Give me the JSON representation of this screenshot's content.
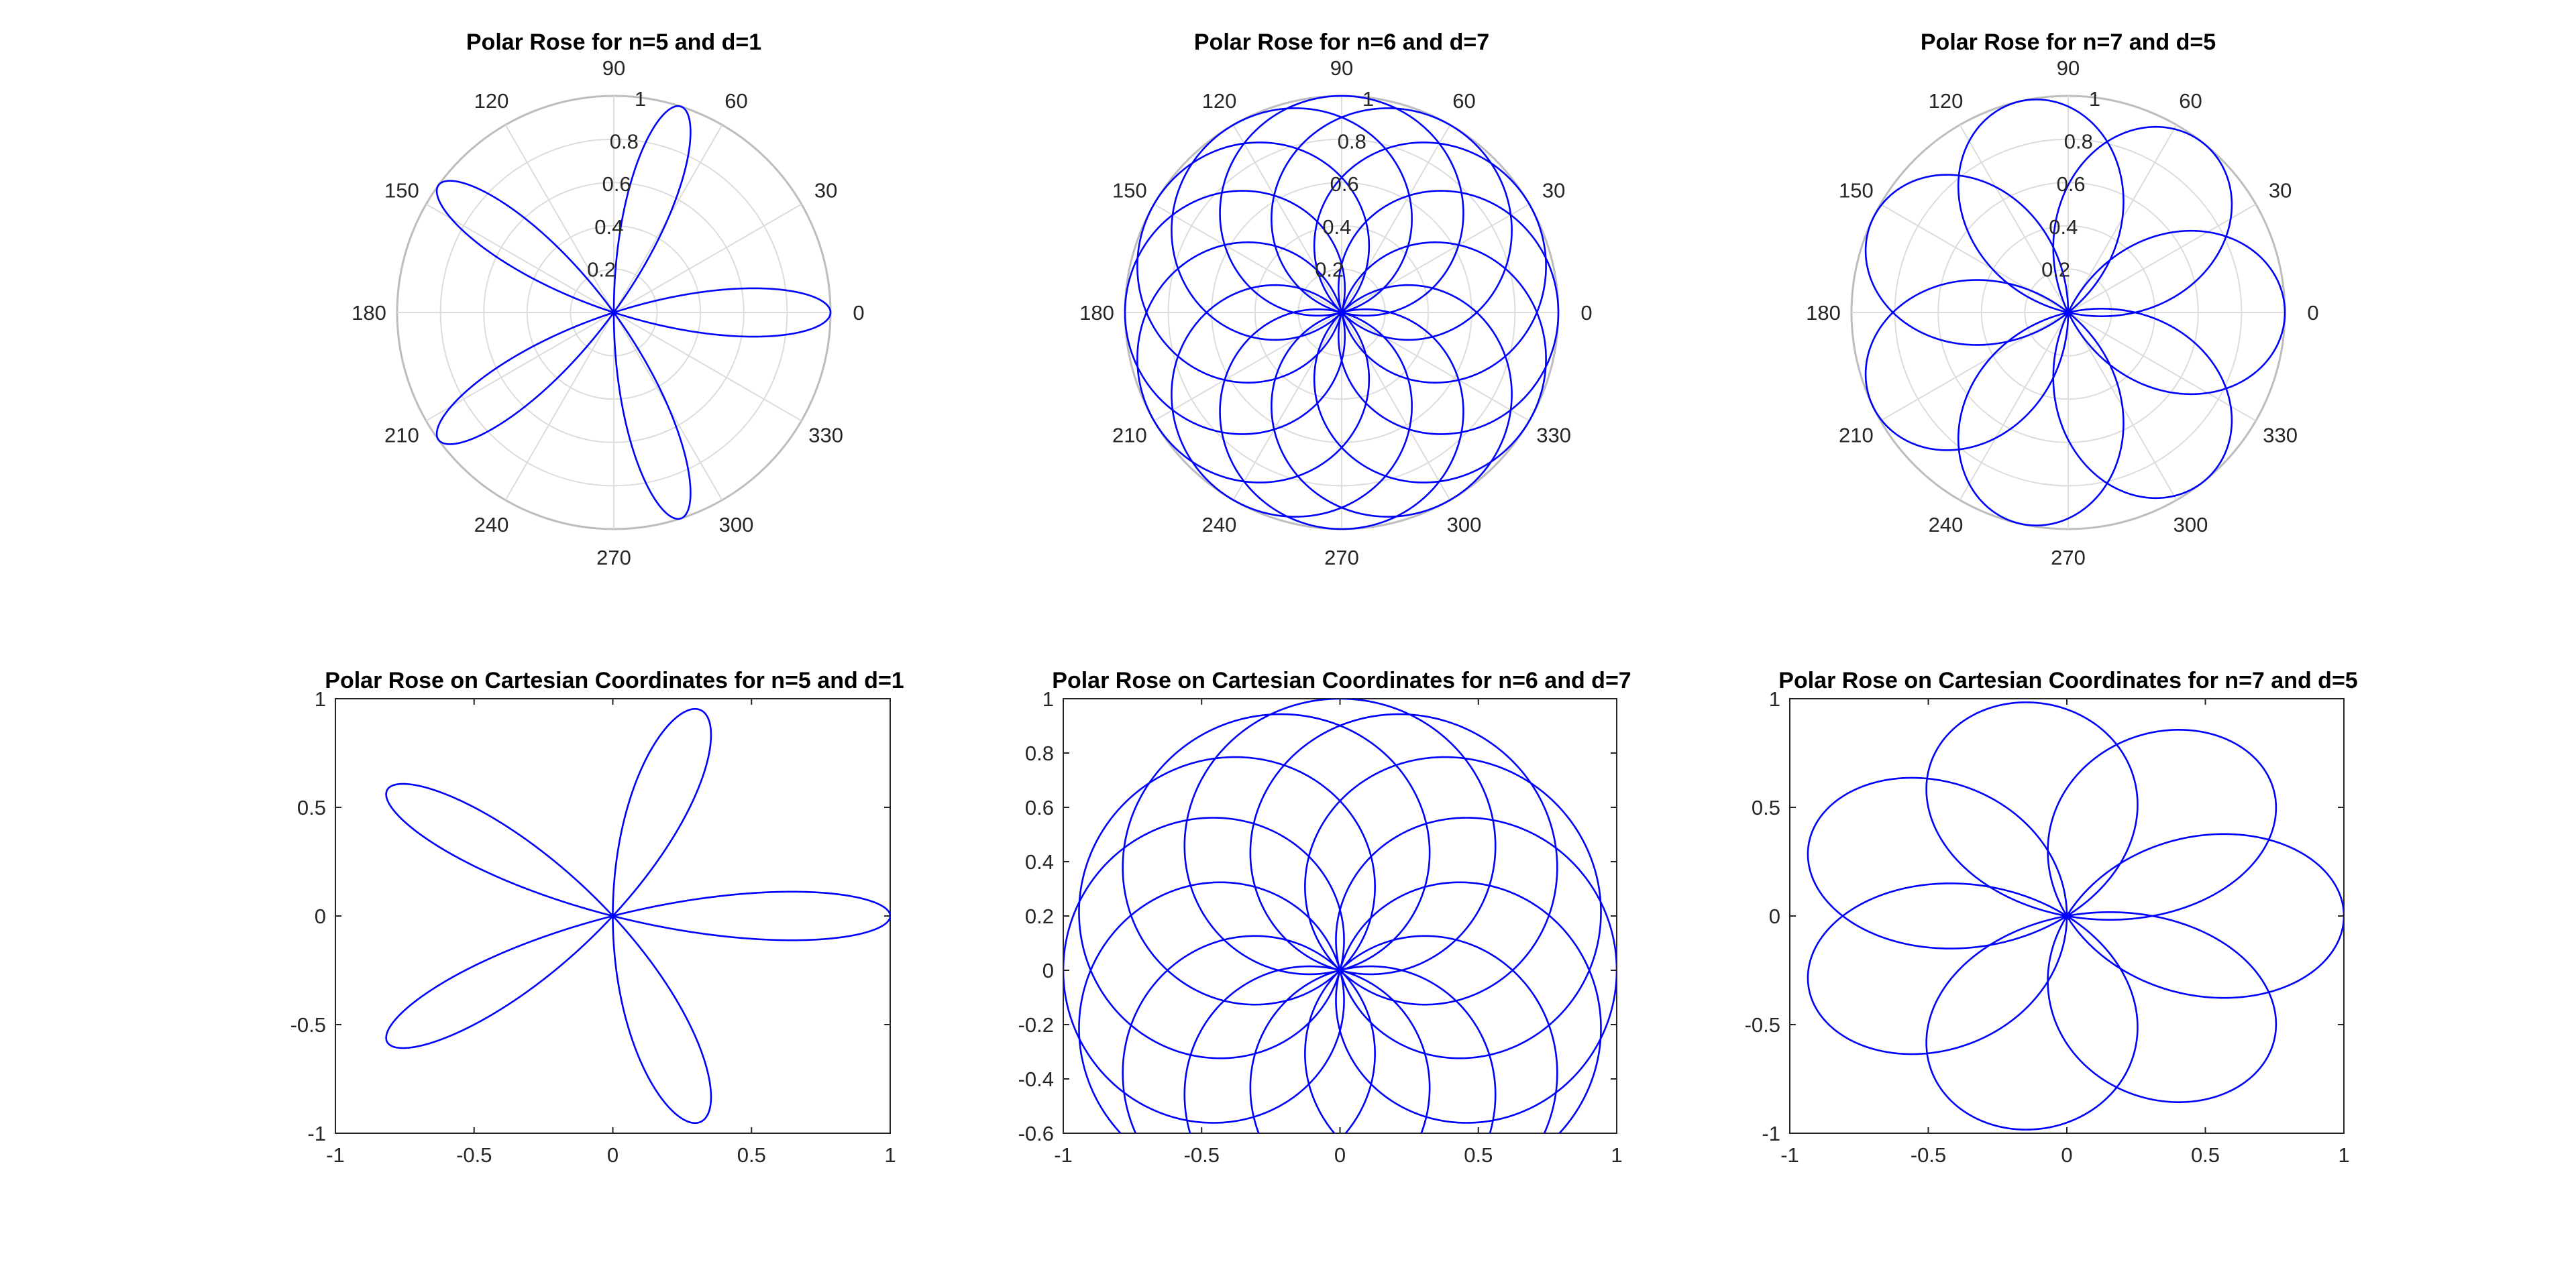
{
  "chart_data": [
    {
      "type": "line",
      "coordinate_system": "polar",
      "title": "Polar Rose for n=5 and d=1",
      "n": 5,
      "d": 1,
      "formula": "r = cos(n/d * theta)",
      "theta_range_deg": [
        0,
        360
      ],
      "rlim": [
        0,
        1
      ],
      "r_ticks": [
        "0.2",
        "0.4",
        "0.6",
        "0.8",
        "1"
      ],
      "theta_ticks": [
        "0",
        "30",
        "60",
        "90",
        "120",
        "150",
        "180",
        "210",
        "240",
        "270",
        "300",
        "330"
      ],
      "grid": true,
      "series_color": "#0000ff"
    },
    {
      "type": "line",
      "coordinate_system": "polar",
      "title": "Polar Rose for n=6 and d=7",
      "n": 6,
      "d": 7,
      "formula": "r = cos(n/d * theta)",
      "theta_range_deg": [
        0,
        2520
      ],
      "rlim": [
        0,
        1
      ],
      "r_ticks": [
        "0.2",
        "0.4",
        "0.6",
        "0.8",
        "1"
      ],
      "theta_ticks": [
        "0",
        "30",
        "60",
        "90",
        "120",
        "150",
        "180",
        "210",
        "240",
        "270",
        "300",
        "330"
      ],
      "grid": true,
      "series_color": "#0000ff"
    },
    {
      "type": "line",
      "coordinate_system": "polar",
      "title": "Polar Rose for n=7 and d=5",
      "n": 7,
      "d": 5,
      "formula": "r = cos(n/d * theta)",
      "theta_range_deg": [
        0,
        1800
      ],
      "rlim": [
        0,
        1
      ],
      "r_ticks": [
        "0.2",
        "0.4",
        "0.6",
        "0.8",
        "1"
      ],
      "theta_ticks": [
        "0",
        "30",
        "60",
        "90",
        "120",
        "150",
        "180",
        "210",
        "240",
        "270",
        "300",
        "330"
      ],
      "grid": true,
      "series_color": "#0000ff"
    },
    {
      "type": "line",
      "coordinate_system": "cartesian",
      "title": "Polar Rose on Cartesian Coordinates for n=5 and d=1",
      "n": 5,
      "d": 1,
      "formula": "x = r cos(theta), y = r sin(theta), r = cos(n/d * theta)",
      "theta_range_deg": [
        0,
        360
      ],
      "xlim": [
        -1,
        1
      ],
      "ylim": [
        -1,
        1
      ],
      "x_ticks": [
        {
          "v": -1,
          "label": "-1"
        },
        {
          "v": -0.5,
          "label": "-0.5"
        },
        {
          "v": 0,
          "label": "0"
        },
        {
          "v": 0.5,
          "label": "0.5"
        },
        {
          "v": 1,
          "label": "1"
        }
      ],
      "y_ticks": [
        {
          "v": -1,
          "label": "-1"
        },
        {
          "v": -0.5,
          "label": "-0.5"
        },
        {
          "v": 0,
          "label": "0"
        },
        {
          "v": 0.5,
          "label": "0.5"
        },
        {
          "v": 1,
          "label": "1"
        }
      ],
      "grid": false,
      "series_color": "#0000ff"
    },
    {
      "type": "line",
      "coordinate_system": "cartesian",
      "title": "Polar Rose on Cartesian Coordinates for n=6 and d=7",
      "n": 6,
      "d": 7,
      "formula": "x = r cos(theta), y = r sin(theta), r = cos(n/d * theta)",
      "theta_range_deg": [
        0,
        2520
      ],
      "xlim": [
        -1,
        1
      ],
      "ylim": [
        -0.6,
        1
      ],
      "x_ticks": [
        {
          "v": -1,
          "label": "-1"
        },
        {
          "v": -0.5,
          "label": "-0.5"
        },
        {
          "v": 0,
          "label": "0"
        },
        {
          "v": 0.5,
          "label": "0.5"
        },
        {
          "v": 1,
          "label": "1"
        }
      ],
      "y_ticks": [
        {
          "v": -0.6,
          "label": "-0.6"
        },
        {
          "v": -0.4,
          "label": "-0.4"
        },
        {
          "v": -0.2,
          "label": "-0.2"
        },
        {
          "v": 0,
          "label": "0"
        },
        {
          "v": 0.2,
          "label": "0.2"
        },
        {
          "v": 0.4,
          "label": "0.4"
        },
        {
          "v": 0.6,
          "label": "0.6"
        },
        {
          "v": 0.8,
          "label": "0.8"
        },
        {
          "v": 1,
          "label": "1"
        }
      ],
      "grid": false,
      "series_color": "#0000ff"
    },
    {
      "type": "line",
      "coordinate_system": "cartesian",
      "title": "Polar Rose on Cartesian Coordinates for n=7 and d=5",
      "n": 7,
      "d": 5,
      "formula": "x = r cos(theta), y = r sin(theta), r = cos(n/d * theta)",
      "theta_range_deg": [
        0,
        1800
      ],
      "xlim": [
        -1,
        1
      ],
      "ylim": [
        -1,
        1
      ],
      "x_ticks": [
        {
          "v": -1,
          "label": "-1"
        },
        {
          "v": -0.5,
          "label": "-0.5"
        },
        {
          "v": 0,
          "label": "0"
        },
        {
          "v": 0.5,
          "label": "0.5"
        },
        {
          "v": 1,
          "label": "1"
        }
      ],
      "y_ticks": [
        {
          "v": -1,
          "label": "-1"
        },
        {
          "v": -0.5,
          "label": "-0.5"
        },
        {
          "v": 0,
          "label": "0"
        },
        {
          "v": 0.5,
          "label": "0.5"
        },
        {
          "v": 1,
          "label": "1"
        }
      ],
      "grid": false,
      "series_color": "#0000ff"
    }
  ]
}
